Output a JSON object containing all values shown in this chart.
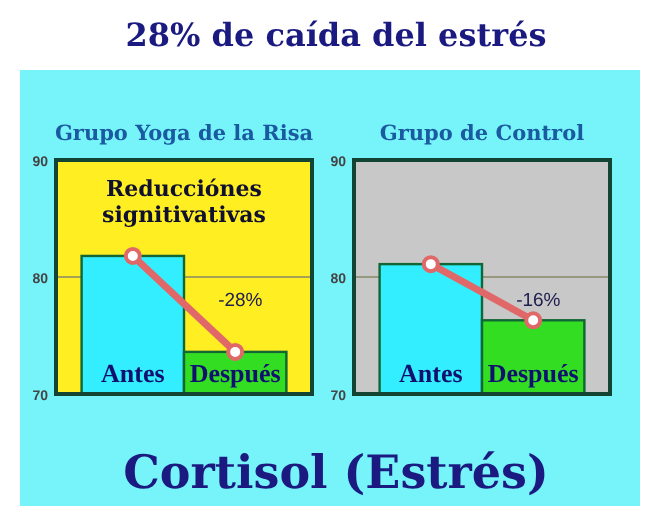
{
  "chart_data": [
    {
      "type": "other",
      "title": "28% de caída del estrés",
      "annotations": [
        "Cortisol (Estrés)"
      ]
    },
    {
      "type": "bar",
      "title": "Grupo Yoga de la Risa",
      "categories": [
        "Antes",
        "Después"
      ],
      "series": [
        {
          "type": "bar",
          "colors": [
            "#33eeff",
            "#33dd22"
          ],
          "values": [
            81.8,
            73.6
          ]
        },
        {
          "type": "line",
          "color": "#e06868",
          "values": [
            81.8,
            73.6
          ]
        }
      ],
      "marker": "circle",
      "ylim": [
        70,
        90
      ],
      "yticks": [
        70,
        80,
        90
      ],
      "grid": "y",
      "annotations": [
        "Reducciónes signitivativas",
        "-28%"
      ]
    },
    {
      "type": "bar",
      "title": "Grupo de Control",
      "categories": [
        "Antes",
        "Después"
      ],
      "series": [
        {
          "type": "bar",
          "colors": [
            "#33eeff",
            "#33dd22"
          ],
          "values": [
            81.1,
            76.3
          ]
        },
        {
          "type": "line",
          "color": "#e06868",
          "values": [
            81.1,
            76.3
          ]
        }
      ],
      "marker": "circle",
      "ylim": [
        70,
        90
      ],
      "yticks": [
        70,
        80,
        90
      ],
      "grid": "y",
      "annotations": [
        "-16%"
      ]
    }
  ]
}
